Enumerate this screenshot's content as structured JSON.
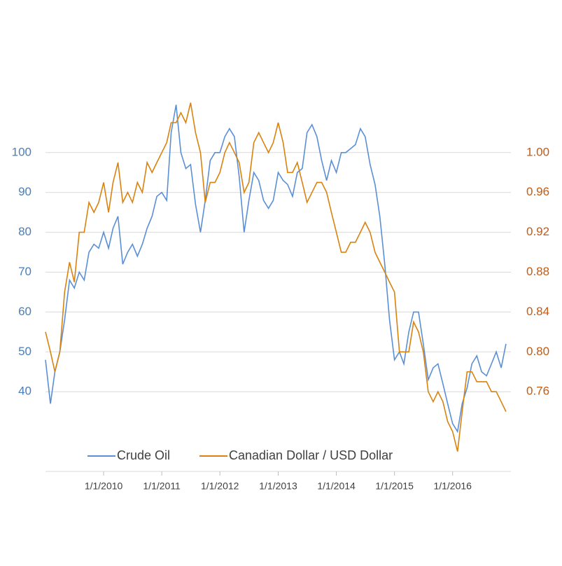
{
  "chart_data": {
    "type": "line",
    "x": [
      "1/1/2009",
      "2/1/2009",
      "3/1/2009",
      "4/1/2009",
      "5/1/2009",
      "6/1/2009",
      "7/1/2009",
      "8/1/2009",
      "9/1/2009",
      "10/1/2009",
      "11/1/2009",
      "12/1/2009",
      "1/1/2010",
      "2/1/2010",
      "3/1/2010",
      "4/1/2010",
      "5/1/2010",
      "6/1/2010",
      "7/1/2010",
      "8/1/2010",
      "9/1/2010",
      "10/1/2010",
      "11/1/2010",
      "12/1/2010",
      "1/1/2011",
      "2/1/2011",
      "3/1/2011",
      "4/1/2011",
      "5/1/2011",
      "6/1/2011",
      "7/1/2011",
      "8/1/2011",
      "9/1/2011",
      "10/1/2011",
      "11/1/2011",
      "12/1/2011",
      "1/1/2012",
      "2/1/2012",
      "3/1/2012",
      "4/1/2012",
      "5/1/2012",
      "6/1/2012",
      "7/1/2012",
      "8/1/2012",
      "9/1/2012",
      "10/1/2012",
      "11/1/2012",
      "12/1/2012",
      "1/1/2013",
      "2/1/2013",
      "3/1/2013",
      "4/1/2013",
      "5/1/2013",
      "6/1/2013",
      "7/1/2013",
      "8/1/2013",
      "9/1/2013",
      "10/1/2013",
      "11/1/2013",
      "12/1/2013",
      "1/1/2014",
      "2/1/2014",
      "3/1/2014",
      "4/1/2014",
      "5/1/2014",
      "6/1/2014",
      "7/1/2014",
      "8/1/2014",
      "9/1/2014",
      "10/1/2014",
      "11/1/2014",
      "12/1/2014",
      "1/1/2015",
      "2/1/2015",
      "3/1/2015",
      "4/1/2015",
      "5/1/2015",
      "6/1/2015",
      "7/1/2015",
      "8/1/2015",
      "9/1/2015",
      "10/1/2015",
      "11/1/2015",
      "12/1/2015",
      "1/1/2016",
      "2/1/2016",
      "3/1/2016",
      "4/1/2016",
      "5/1/2016",
      "6/1/2016",
      "7/1/2016",
      "8/1/2016",
      "9/1/2016",
      "10/1/2016",
      "11/1/2016",
      "12/1/2016"
    ],
    "xlim": [
      "1/1/2009",
      "1/1/2017"
    ],
    "xticks": [
      "1/1/2010",
      "1/1/2011",
      "1/1/2012",
      "1/1/2013",
      "1/1/2014",
      "1/1/2015",
      "1/1/2016"
    ],
    "series": [
      {
        "name": "Crude Oil",
        "color": "#5b8fd5",
        "values": [
          48,
          37,
          45,
          50,
          58,
          68,
          66,
          70,
          68,
          75,
          77,
          76,
          80,
          76,
          81,
          84,
          72,
          75,
          77,
          74,
          77,
          81,
          84,
          89,
          90,
          88,
          105,
          112,
          100,
          96,
          97,
          87,
          80,
          88,
          98,
          100,
          100,
          104,
          106,
          104,
          94,
          80,
          88,
          95,
          93,
          88,
          86,
          88,
          95,
          93,
          92,
          89,
          95,
          96,
          105,
          107,
          104,
          98,
          93,
          98,
          95,
          100,
          100,
          101,
          102,
          106,
          104,
          97,
          92,
          84,
          72,
          58,
          48,
          50,
          47,
          55,
          60,
          60,
          52,
          43,
          46,
          47,
          42,
          37,
          32,
          30,
          37,
          41,
          47,
          49,
          45,
          44,
          47,
          50,
          46,
          52
        ]
      },
      {
        "name": "Canadian Dollar / USD Dollar",
        "color": "#d9820f",
        "axis": "y2",
        "values": [
          0.82,
          0.8,
          0.78,
          0.8,
          0.86,
          0.89,
          0.87,
          0.92,
          0.92,
          0.95,
          0.94,
          0.95,
          0.97,
          0.94,
          0.97,
          0.99,
          0.95,
          0.96,
          0.95,
          0.97,
          0.96,
          0.99,
          0.98,
          0.99,
          1.0,
          1.01,
          1.03,
          1.03,
          1.04,
          1.03,
          1.05,
          1.02,
          1.0,
          0.95,
          0.97,
          0.97,
          0.98,
          1.0,
          1.01,
          1.0,
          0.99,
          0.96,
          0.97,
          1.01,
          1.02,
          1.01,
          1.0,
          1.01,
          1.03,
          1.01,
          0.98,
          0.98,
          0.99,
          0.97,
          0.95,
          0.96,
          0.97,
          0.97,
          0.96,
          0.94,
          0.92,
          0.9,
          0.9,
          0.91,
          0.91,
          0.92,
          0.93,
          0.92,
          0.9,
          0.89,
          0.88,
          0.87,
          0.86,
          0.8,
          0.8,
          0.8,
          0.83,
          0.82,
          0.8,
          0.76,
          0.75,
          0.76,
          0.75,
          0.73,
          0.72,
          0.7,
          0.74,
          0.78,
          0.78,
          0.77,
          0.77,
          0.77,
          0.76,
          0.76,
          0.75,
          0.74
        ]
      }
    ],
    "ylim": [
      20,
      120
    ],
    "yticks": [
      40,
      50,
      60,
      70,
      80,
      90,
      100
    ],
    "y2lim": [
      0.68,
      1.08
    ],
    "y2ticks": [
      {
        "value": 0.76,
        "label": "0.76"
      },
      {
        "value": 0.8,
        "label": "0.80"
      },
      0.84,
      0.88,
      0.92,
      0.96,
      {
        "value": 1,
        "label": "1.00"
      }
    ],
    "grid": true,
    "legend": "bottom"
  }
}
